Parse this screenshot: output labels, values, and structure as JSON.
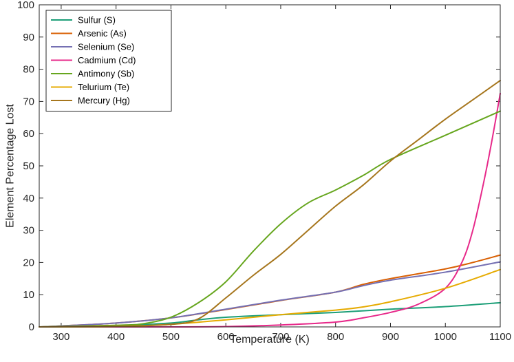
{
  "chart_data": {
    "type": "line",
    "title": "",
    "xlabel": "Temperature (K)",
    "ylabel": "Element Percentage Lost",
    "xlim": [
      260,
      1100
    ],
    "ylim": [
      0,
      100
    ],
    "xticks": [
      "300",
      "400",
      "500",
      "600",
      "700",
      "800",
      "900",
      "1000",
      "1100"
    ],
    "yticks": [
      "0",
      "10",
      "20",
      "30",
      "40",
      "50",
      "60",
      "70",
      "80",
      "90",
      "100"
    ],
    "legend_position": "top-left",
    "series": [
      {
        "name": "Sulfur (S)",
        "color": "#1b9e77",
        "x": [
          260,
          300,
          400,
          500,
          550,
          600,
          700,
          800,
          900,
          1000,
          1100
        ],
        "y": [
          0,
          0.1,
          0.4,
          1.2,
          2.2,
          3.0,
          3.8,
          4.5,
          5.5,
          6.3,
          7.5
        ]
      },
      {
        "name": "Arsenic (As)",
        "color": "#d95f02",
        "x": [
          260,
          300,
          400,
          500,
          600,
          700,
          800,
          850,
          900,
          1000,
          1050,
          1100
        ],
        "y": [
          0,
          0.3,
          1.2,
          2.8,
          5.4,
          8.2,
          10.8,
          13.2,
          15.0,
          18.0,
          20.0,
          22.3
        ]
      },
      {
        "name": "Selenium (Se)",
        "color": "#7570b3",
        "x": [
          260,
          300,
          400,
          500,
          600,
          700,
          800,
          850,
          900,
          1000,
          1100
        ],
        "y": [
          0,
          0.3,
          1.2,
          2.8,
          5.5,
          8.3,
          10.8,
          12.8,
          14.5,
          17.0,
          20.2
        ]
      },
      {
        "name": "Cadmium (Cd)",
        "color": "#e7298a",
        "x": [
          260,
          500,
          600,
          700,
          800,
          850,
          900,
          950,
          1000,
          1030,
          1050,
          1070,
          1085,
          1100
        ],
        "y": [
          0,
          0,
          0.1,
          0.6,
          1.5,
          2.8,
          4.5,
          7.0,
          12.0,
          20.0,
          30.0,
          45.0,
          58.0,
          72.5
        ]
      },
      {
        "name": "Antimony (Sb)",
        "color": "#66a61e",
        "x": [
          260,
          400,
          450,
          500,
          550,
          600,
          650,
          700,
          750,
          800,
          850,
          900,
          1000,
          1100
        ],
        "y": [
          0,
          0.5,
          1.0,
          3.0,
          7.5,
          14.0,
          23.5,
          32.0,
          38.5,
          42.5,
          47.0,
          52.0,
          59.5,
          67.0
        ]
      },
      {
        "name": "Telurium (Te)",
        "color": "#e6ab02",
        "x": [
          260,
          400,
          500,
          600,
          700,
          800,
          850,
          900,
          1000,
          1100
        ],
        "y": [
          0,
          0.1,
          0.8,
          2.2,
          3.8,
          5.2,
          6.2,
          7.8,
          12.0,
          17.8
        ]
      },
      {
        "name": "Mercury (Hg)",
        "color": "#a6761d",
        "x": [
          260,
          400,
          500,
          550,
          600,
          650,
          700,
          750,
          800,
          850,
          900,
          950,
          1000,
          1050,
          1100
        ],
        "y": [
          0,
          0.2,
          0.8,
          2.5,
          9.0,
          16.0,
          22.5,
          30.0,
          37.5,
          44.0,
          51.5,
          58.0,
          64.5,
          70.5,
          76.5
        ]
      }
    ]
  }
}
